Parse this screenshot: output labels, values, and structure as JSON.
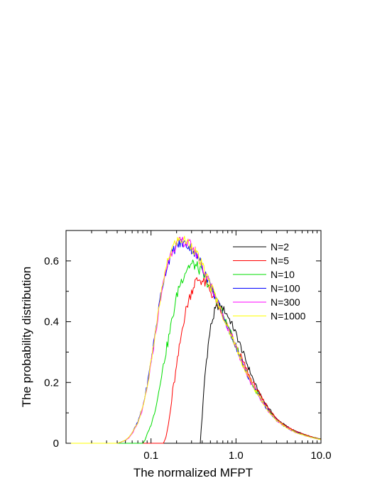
{
  "chart_data": {
    "type": "line",
    "title": "",
    "xlabel": "The normalized MFPT",
    "ylabel": "The probability distribution",
    "xscale": "log",
    "xlim": [
      0.01,
      10.0
    ],
    "ylim": [
      0,
      0.7
    ],
    "xticks": [
      {
        "value": 0.1,
        "label": "0.1"
      },
      {
        "value": 1.0,
        "label": "1.0"
      },
      {
        "value": 10.0,
        "label": "10.0"
      }
    ],
    "yticks": [
      {
        "value": 0,
        "label": "0"
      },
      {
        "value": 0.2,
        "label": "0.2"
      },
      {
        "value": 0.4,
        "label": "0.4"
      },
      {
        "value": 0.6,
        "label": "0.6"
      }
    ],
    "grid": false,
    "legend_position": "top-right",
    "series": [
      {
        "name": "N=2",
        "color": "#000000",
        "points": [
          [
            0.38,
            0.0
          ],
          [
            0.39,
            0.05
          ],
          [
            0.41,
            0.13
          ],
          [
            0.43,
            0.22
          ],
          [
            0.46,
            0.3
          ],
          [
            0.49,
            0.36
          ],
          [
            0.52,
            0.4
          ],
          [
            0.56,
            0.43
          ],
          [
            0.6,
            0.45
          ],
          [
            0.66,
            0.45
          ],
          [
            0.72,
            0.44
          ],
          [
            0.8,
            0.42
          ],
          [
            0.9,
            0.39
          ],
          [
            1.0,
            0.36
          ],
          [
            1.2,
            0.3
          ],
          [
            1.4,
            0.25
          ],
          [
            1.7,
            0.19
          ],
          [
            2.0,
            0.15
          ],
          [
            2.5,
            0.11
          ],
          [
            3.0,
            0.08
          ],
          [
            4.0,
            0.055
          ],
          [
            5.0,
            0.04
          ],
          [
            6.5,
            0.028
          ],
          [
            8.0,
            0.02
          ],
          [
            10.0,
            0.014
          ]
        ]
      },
      {
        "name": "N=5",
        "color": "#ff0000",
        "points": [
          [
            0.14,
            0.0
          ],
          [
            0.15,
            0.02
          ],
          [
            0.16,
            0.06
          ],
          [
            0.17,
            0.11
          ],
          [
            0.18,
            0.17
          ],
          [
            0.2,
            0.25
          ],
          [
            0.22,
            0.33
          ],
          [
            0.24,
            0.4
          ],
          [
            0.27,
            0.46
          ],
          [
            0.3,
            0.5
          ],
          [
            0.33,
            0.53
          ],
          [
            0.37,
            0.54
          ],
          [
            0.42,
            0.53
          ],
          [
            0.48,
            0.51
          ],
          [
            0.55,
            0.48
          ],
          [
            0.65,
            0.44
          ],
          [
            0.78,
            0.39
          ],
          [
            0.9,
            0.35
          ],
          [
            1.0,
            0.32
          ],
          [
            1.2,
            0.27
          ],
          [
            1.5,
            0.21
          ],
          [
            2.0,
            0.15
          ],
          [
            2.5,
            0.11
          ],
          [
            3.0,
            0.08
          ],
          [
            4.0,
            0.055
          ],
          [
            5.0,
            0.04
          ],
          [
            6.5,
            0.028
          ],
          [
            8.0,
            0.02
          ],
          [
            10.0,
            0.014
          ]
        ]
      },
      {
        "name": "N=10",
        "color": "#00dd00",
        "points": [
          [
            0.08,
            0.0
          ],
          [
            0.085,
            0.01
          ],
          [
            0.09,
            0.03
          ],
          [
            0.1,
            0.06
          ],
          [
            0.11,
            0.1
          ],
          [
            0.12,
            0.15
          ],
          [
            0.13,
            0.21
          ],
          [
            0.15,
            0.3
          ],
          [
            0.17,
            0.38
          ],
          [
            0.19,
            0.45
          ],
          [
            0.21,
            0.51
          ],
          [
            0.24,
            0.55
          ],
          [
            0.27,
            0.58
          ],
          [
            0.31,
            0.59
          ],
          [
            0.35,
            0.58
          ],
          [
            0.4,
            0.56
          ],
          [
            0.46,
            0.53
          ],
          [
            0.55,
            0.49
          ],
          [
            0.65,
            0.45
          ],
          [
            0.78,
            0.39
          ],
          [
            0.9,
            0.35
          ],
          [
            1.0,
            0.32
          ],
          [
            1.2,
            0.26
          ],
          [
            1.5,
            0.2
          ],
          [
            2.0,
            0.14
          ],
          [
            2.5,
            0.1
          ],
          [
            3.0,
            0.075
          ],
          [
            4.0,
            0.05
          ],
          [
            5.0,
            0.037
          ],
          [
            6.5,
            0.026
          ],
          [
            8.0,
            0.019
          ],
          [
            10.0,
            0.013
          ]
        ]
      },
      {
        "name": "N=100",
        "color": "#0000ff",
        "points": [
          [
            0.04,
            0.0
          ],
          [
            0.045,
            0.005
          ],
          [
            0.05,
            0.01
          ],
          [
            0.055,
            0.02
          ],
          [
            0.06,
            0.035
          ],
          [
            0.07,
            0.07
          ],
          [
            0.08,
            0.12
          ],
          [
            0.09,
            0.19
          ],
          [
            0.1,
            0.27
          ],
          [
            0.11,
            0.35
          ],
          [
            0.12,
            0.42
          ],
          [
            0.13,
            0.49
          ],
          [
            0.145,
            0.55
          ],
          [
            0.16,
            0.6
          ],
          [
            0.18,
            0.63
          ],
          [
            0.2,
            0.65
          ],
          [
            0.23,
            0.66
          ],
          [
            0.26,
            0.655
          ],
          [
            0.3,
            0.64
          ],
          [
            0.34,
            0.62
          ],
          [
            0.39,
            0.59
          ],
          [
            0.45,
            0.55
          ],
          [
            0.52,
            0.51
          ],
          [
            0.6,
            0.47
          ],
          [
            0.7,
            0.42
          ],
          [
            0.8,
            0.38
          ],
          [
            0.9,
            0.35
          ],
          [
            1.0,
            0.32
          ],
          [
            1.2,
            0.26
          ],
          [
            1.5,
            0.2
          ],
          [
            2.0,
            0.14
          ],
          [
            2.5,
            0.1
          ],
          [
            3.0,
            0.075
          ],
          [
            4.0,
            0.05
          ],
          [
            5.0,
            0.036
          ],
          [
            6.5,
            0.025
          ],
          [
            8.0,
            0.018
          ],
          [
            10.0,
            0.012
          ]
        ]
      },
      {
        "name": "N=300",
        "color": "#ff00ff",
        "points": [
          [
            0.04,
            0.0
          ],
          [
            0.045,
            0.004
          ],
          [
            0.05,
            0.009
          ],
          [
            0.055,
            0.018
          ],
          [
            0.06,
            0.032
          ],
          [
            0.07,
            0.065
          ],
          [
            0.08,
            0.115
          ],
          [
            0.09,
            0.18
          ],
          [
            0.1,
            0.26
          ],
          [
            0.11,
            0.34
          ],
          [
            0.12,
            0.41
          ],
          [
            0.13,
            0.48
          ],
          [
            0.145,
            0.55
          ],
          [
            0.16,
            0.6
          ],
          [
            0.18,
            0.64
          ],
          [
            0.2,
            0.655
          ],
          [
            0.23,
            0.665
          ],
          [
            0.26,
            0.66
          ],
          [
            0.3,
            0.65
          ],
          [
            0.34,
            0.625
          ],
          [
            0.39,
            0.59
          ],
          [
            0.45,
            0.55
          ],
          [
            0.52,
            0.51
          ],
          [
            0.6,
            0.47
          ],
          [
            0.7,
            0.42
          ],
          [
            0.8,
            0.38
          ],
          [
            0.9,
            0.35
          ],
          [
            1.0,
            0.32
          ],
          [
            1.2,
            0.26
          ],
          [
            1.5,
            0.2
          ],
          [
            2.0,
            0.14
          ],
          [
            2.5,
            0.1
          ],
          [
            3.0,
            0.075
          ],
          [
            4.0,
            0.05
          ],
          [
            5.0,
            0.036
          ],
          [
            6.5,
            0.025
          ],
          [
            8.0,
            0.018
          ],
          [
            10.0,
            0.012
          ]
        ]
      },
      {
        "name": "N=1000",
        "color": "#ffff00",
        "points": [
          [
            0.04,
            0.0
          ],
          [
            0.045,
            0.005
          ],
          [
            0.05,
            0.01
          ],
          [
            0.055,
            0.02
          ],
          [
            0.06,
            0.034
          ],
          [
            0.07,
            0.068
          ],
          [
            0.08,
            0.118
          ],
          [
            0.09,
            0.185
          ],
          [
            0.1,
            0.265
          ],
          [
            0.11,
            0.345
          ],
          [
            0.12,
            0.415
          ],
          [
            0.13,
            0.485
          ],
          [
            0.145,
            0.555
          ],
          [
            0.16,
            0.605
          ],
          [
            0.18,
            0.645
          ],
          [
            0.2,
            0.665
          ],
          [
            0.23,
            0.67
          ],
          [
            0.26,
            0.665
          ],
          [
            0.3,
            0.65
          ],
          [
            0.34,
            0.625
          ],
          [
            0.39,
            0.59
          ],
          [
            0.45,
            0.55
          ],
          [
            0.52,
            0.51
          ],
          [
            0.6,
            0.47
          ],
          [
            0.7,
            0.42
          ],
          [
            0.8,
            0.38
          ],
          [
            0.9,
            0.35
          ],
          [
            1.0,
            0.32
          ],
          [
            1.2,
            0.26
          ],
          [
            1.5,
            0.2
          ],
          [
            2.0,
            0.14
          ],
          [
            2.5,
            0.1
          ],
          [
            3.0,
            0.075
          ],
          [
            4.0,
            0.05
          ],
          [
            5.0,
            0.036
          ],
          [
            6.5,
            0.025
          ],
          [
            8.0,
            0.018
          ],
          [
            10.0,
            0.012
          ]
        ]
      }
    ]
  }
}
